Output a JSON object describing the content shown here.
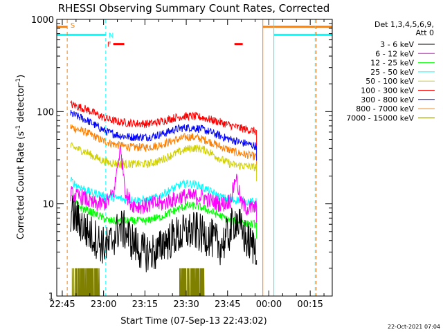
{
  "chart_data": {
    "type": "line",
    "title": "RHESSI Observing Summary Count Rates, Corrected",
    "xlabel": "Start Time (07-Sep-13 22:43:02)",
    "ylabel_main": "Corrected Count Rate (s",
    "ylabel_sup1": "-1",
    "ylabel_mid": " detector",
    "ylabel_sup2": "-1",
    "ylabel_end": ")",
    "x_unit": "minutes since 22:43:02",
    "xlim": [
      0,
      100
    ],
    "y_scale": "log",
    "ylim": [
      1,
      1000
    ],
    "x_ticks": [
      {
        "value": 2,
        "label": "22:45"
      },
      {
        "value": 17,
        "label": "23:00"
      },
      {
        "value": 32,
        "label": "23:15"
      },
      {
        "value": 47,
        "label": "23:30"
      },
      {
        "value": 62,
        "label": "23:45"
      },
      {
        "value": 77,
        "label": "00:00"
      },
      {
        "value": 92,
        "label": "00:15"
      }
    ],
    "y_ticks": [
      {
        "value": 1,
        "label": "1"
      },
      {
        "value": 10,
        "label": "10"
      },
      {
        "value": 100,
        "label": "100"
      },
      {
        "value": 1000,
        "label": "1000"
      }
    ],
    "data_range": [
      5,
      72.5
    ],
    "legend_header": [
      "Det 1,3,4,5,6,9,",
      "Att 0"
    ],
    "series": [
      {
        "name": "3 - 6 keV",
        "color": "#000000",
        "x": [
          5,
          7,
          9,
          11,
          13,
          15,
          17,
          19,
          21,
          23,
          25,
          27,
          29,
          31,
          33,
          35,
          37,
          39,
          41,
          43,
          45,
          47,
          49,
          51,
          53,
          55,
          57,
          59,
          61,
          63,
          65,
          67,
          69,
          71,
          72.5
        ],
        "y": [
          8,
          7,
          6,
          5,
          4.5,
          4,
          3.5,
          3.5,
          4.5,
          5.5,
          5,
          4,
          3.5,
          3,
          3,
          3,
          3,
          4,
          4,
          4.5,
          4.5,
          5,
          5,
          5,
          4.5,
          4.5,
          4,
          3.5,
          4,
          5,
          7,
          5,
          4,
          3.5,
          3.5
        ]
      },
      {
        "name": "6 - 12 keV",
        "color": "#ff00ff",
        "x": [
          5,
          7,
          9,
          11,
          13,
          15,
          17,
          19,
          21,
          22,
          23,
          24,
          25,
          27,
          29,
          31,
          33,
          35,
          37,
          39,
          41,
          43,
          45,
          47,
          49,
          51,
          53,
          55,
          57,
          59,
          61,
          63,
          64,
          65,
          66,
          67,
          69,
          71,
          72.5
        ],
        "y": [
          13,
          12,
          12,
          11,
          10,
          10,
          10,
          11,
          14,
          25,
          38,
          25,
          13,
          10,
          9.5,
          9.5,
          9.5,
          10,
          10,
          10,
          11,
          11,
          12,
          12,
          12,
          12,
          12,
          11,
          10.5,
          10,
          10,
          11,
          14,
          20,
          14,
          10,
          9,
          9,
          9
        ]
      },
      {
        "name": "12 - 25 keV",
        "color": "#00ff00",
        "x": [
          5,
          7,
          9,
          11,
          13,
          15,
          17,
          19,
          21,
          23,
          25,
          27,
          29,
          31,
          33,
          35,
          37,
          39,
          41,
          43,
          45,
          47,
          49,
          51,
          53,
          55,
          57,
          59,
          61,
          63,
          65,
          67,
          69,
          71,
          72.5
        ],
        "y": [
          12,
          10,
          9,
          8.5,
          8,
          7.5,
          7,
          6.5,
          6.5,
          6.5,
          6.5,
          6.5,
          6.5,
          6.5,
          6.5,
          7,
          7,
          7.5,
          8,
          8.5,
          9,
          9.5,
          9.5,
          9.5,
          9,
          8.5,
          8,
          7.5,
          7,
          6.5,
          6.5,
          6.5,
          6,
          6,
          6
        ]
      },
      {
        "name": "25 - 50 keV",
        "color": "#00ffff",
        "x": [
          5,
          7,
          9,
          11,
          13,
          15,
          17,
          19,
          21,
          23,
          25,
          27,
          29,
          31,
          33,
          35,
          37,
          39,
          41,
          43,
          45,
          47,
          49,
          51,
          53,
          55,
          57,
          59,
          61,
          63,
          65,
          67,
          69,
          71,
          72.5
        ],
        "y": [
          18,
          16,
          15,
          14,
          13,
          13,
          12,
          12,
          11.5,
          11.5,
          11,
          11,
          11,
          11,
          11,
          11.5,
          12,
          13,
          14,
          15,
          16,
          16.5,
          16.5,
          16,
          15,
          14,
          13,
          12,
          11.5,
          11,
          11,
          11,
          10.5,
          10.5,
          10.5
        ]
      },
      {
        "name": "50 - 100 keV",
        "color": "#d0d000",
        "x": [
          5,
          7,
          9,
          11,
          13,
          15,
          17,
          19,
          21,
          23,
          25,
          27,
          29,
          31,
          33,
          35,
          37,
          39,
          41,
          43,
          45,
          47,
          49,
          51,
          53,
          55,
          57,
          59,
          61,
          63,
          65,
          67,
          69,
          71,
          72.5
        ],
        "y": [
          42,
          40,
          38,
          36,
          33,
          31,
          29,
          28,
          27.5,
          27,
          27,
          27,
          27,
          27,
          27,
          28,
          29,
          31,
          33,
          35,
          37,
          39,
          40,
          40,
          39,
          37,
          34,
          31,
          29,
          27,
          26,
          26,
          25.5,
          25,
          25
        ]
      },
      {
        "name": "100 - 300 keV",
        "color": "#ff0000",
        "x": [
          5,
          7,
          9,
          11,
          13,
          15,
          17,
          19,
          21,
          23,
          25,
          27,
          29,
          31,
          33,
          35,
          37,
          39,
          41,
          43,
          45,
          47,
          49,
          51,
          53,
          55,
          57,
          59,
          61,
          63,
          65,
          67,
          69,
          71,
          72.5
        ],
        "y": [
          120,
          115,
          110,
          105,
          98,
          92,
          86,
          82,
          79,
          77,
          76,
          75,
          74,
          74,
          74,
          75,
          77,
          80,
          83,
          86,
          88,
          89,
          89,
          88,
          86,
          83,
          80,
          77,
          74,
          71,
          68,
          66,
          64,
          62,
          61
        ]
      },
      {
        "name": "300 - 800 keV",
        "color": "#0000ff",
        "x": [
          5,
          7,
          9,
          11,
          13,
          15,
          17,
          19,
          21,
          23,
          25,
          27,
          29,
          31,
          33,
          35,
          37,
          39,
          41,
          43,
          45,
          47,
          49,
          51,
          53,
          55,
          57,
          59,
          61,
          63,
          65,
          67,
          69,
          71,
          72.5
        ],
        "y": [
          95,
          90,
          85,
          80,
          74,
          68,
          63,
          59,
          57,
          55,
          54,
          53,
          53,
          53,
          53,
          54,
          56,
          58,
          61,
          64,
          66,
          67,
          67,
          66,
          64,
          61,
          58,
          55,
          52,
          50,
          48,
          46,
          45,
          43,
          42
        ]
      },
      {
        "name": "800 - 7000 keV",
        "color": "#ff8000",
        "x": [
          5,
          7,
          9,
          11,
          13,
          15,
          17,
          19,
          21,
          23,
          25,
          27,
          29,
          31,
          33,
          35,
          37,
          39,
          41,
          43,
          45,
          47,
          49,
          51,
          53,
          55,
          57,
          59,
          61,
          63,
          65,
          67,
          69,
          71,
          72.5
        ],
        "y": [
          68,
          65,
          62,
          59,
          55,
          51,
          48,
          46,
          44,
          43,
          42,
          41,
          41,
          41,
          41,
          42,
          43,
          45,
          47,
          49,
          51,
          53,
          53,
          52,
          50,
          48,
          45,
          42,
          40,
          38,
          36,
          35,
          34,
          33,
          32
        ]
      },
      {
        "name": "7000 - 15000 keV",
        "color": "#808000",
        "segments": [
          {
            "x": [
              5.5,
              15.5
            ],
            "y_max": 2
          },
          {
            "x": [
              44.5,
              53.5
            ],
            "y_max": 2
          }
        ]
      }
    ],
    "state_lines": [
      {
        "name": "dashed-orange-left",
        "x": 3.8,
        "color": "#ff8000",
        "style": "dashed"
      },
      {
        "name": "dashed-cyan-left",
        "x": 17.8,
        "color": "#00ffff",
        "style": "dashed"
      },
      {
        "name": "solid-orange-mid",
        "x": 74.8,
        "color": "#ff8000",
        "style": "solid"
      },
      {
        "name": "solid-cyan-mid",
        "x": 78.8,
        "color": "#00ffff",
        "style": "solid"
      },
      {
        "name": "dashed-cyan-right",
        "x": 93.8,
        "color": "#00ffff",
        "style": "dashed"
      },
      {
        "name": "dashed-orange-right",
        "x": 94.2,
        "color": "#ff8000",
        "style": "dashed"
      }
    ],
    "flag_bars": [
      {
        "name": "saa-bar-left",
        "x": [
          0,
          3.8
        ],
        "level": 830,
        "color": "#ff8000"
      },
      {
        "name": "night-bar-left",
        "x": [
          0,
          17.8
        ],
        "level": 680,
        "color": "#00ffff"
      },
      {
        "name": "saa-bar-right",
        "x": [
          74.8,
          100
        ],
        "level": 830,
        "color": "#ff8000"
      },
      {
        "name": "night-bar-right",
        "x": [
          78.8,
          100
        ],
        "level": 680,
        "color": "#00ffff"
      },
      {
        "name": "flare-bar-1",
        "x": [
          20.5,
          24.5
        ],
        "level": 540,
        "color": "#ff0000"
      },
      {
        "name": "flare-bar-2",
        "x": [
          64.5,
          67.5
        ],
        "level": 540,
        "color": "#ff0000"
      }
    ],
    "flag_labels": [
      {
        "name": "saa-label",
        "text": "S",
        "x": 5,
        "level": 870,
        "color": "#ff8000"
      },
      {
        "name": "night-label",
        "text": "N",
        "x": 18.8,
        "level": 680,
        "color": "#00ffff"
      },
      {
        "name": "flare-label",
        "text": "F",
        "x": 18.3,
        "level": 540,
        "color": "#ff0000"
      }
    ],
    "timestamp": "22-Oct-2021 07:04"
  }
}
